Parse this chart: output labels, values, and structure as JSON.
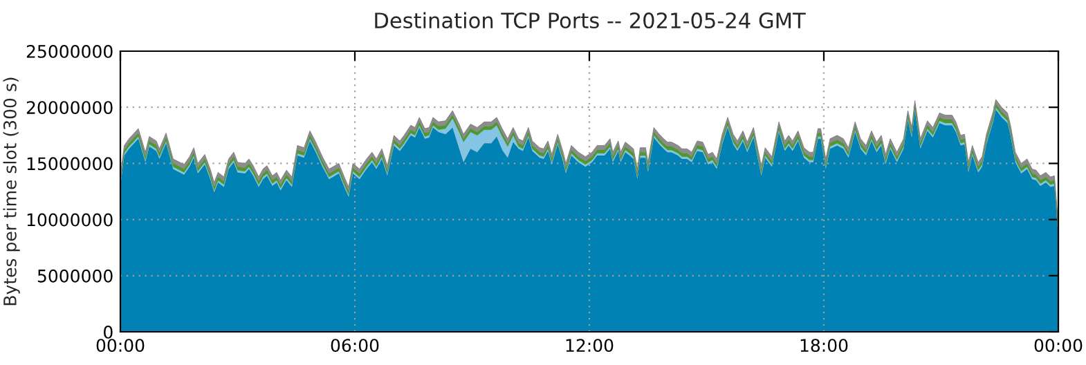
{
  "chart_data": {
    "type": "area",
    "stacked": true,
    "title": "Destination TCP Ports -- 2021-05-24 GMT",
    "ylabel": "Bytes per time slot (300 s)",
    "x": [
      0,
      0.1,
      0.22,
      0.46,
      0.64,
      0.74,
      0.92,
      1.0,
      1.17,
      1.35,
      1.52,
      1.63,
      1.77,
      1.88,
      1.98,
      2.16,
      2.3,
      2.4,
      2.5,
      2.65,
      2.77,
      2.9,
      3.0,
      3.19,
      3.29,
      3.4,
      3.54,
      3.65,
      3.75,
      3.89,
      4.0,
      4.1,
      4.25,
      4.39,
      4.53,
      4.7,
      4.85,
      5.0,
      5.17,
      5.34,
      5.49,
      5.59,
      5.73,
      5.84,
      5.95,
      6.12,
      6.3,
      6.44,
      6.55,
      6.69,
      6.83,
      7.0,
      7.15,
      7.26,
      7.43,
      7.54,
      7.65,
      7.79,
      7.9,
      8.0,
      8.14,
      8.32,
      8.5,
      8.67,
      8.78,
      8.96,
      9.13,
      9.31,
      9.49,
      9.63,
      9.77,
      9.91,
      10.05,
      10.19,
      10.3,
      10.44,
      10.54,
      10.73,
      10.83,
      10.94,
      11.04,
      11.19,
      11.33,
      11.4,
      11.54,
      11.72,
      11.9,
      12.07,
      12.2,
      12.39,
      12.53,
      12.6,
      12.74,
      12.8,
      12.92,
      13.03,
      13.13,
      13.23,
      13.3,
      13.44,
      13.5,
      13.65,
      13.79,
      13.9,
      14.0,
      14.1,
      14.27,
      14.37,
      14.5,
      14.62,
      14.76,
      14.9,
      15.04,
      15.15,
      15.26,
      15.4,
      15.54,
      15.68,
      15.79,
      15.93,
      16.04,
      16.2,
      16.4,
      16.5,
      16.67,
      16.85,
      17.0,
      17.1,
      17.2,
      17.34,
      17.49,
      17.63,
      17.73,
      17.85,
      17.92,
      18.05,
      18.16,
      18.34,
      18.5,
      18.63,
      18.8,
      18.94,
      19.08,
      19.22,
      19.35,
      19.47,
      19.58,
      19.7,
      19.87,
      20.04,
      20.15,
      20.25,
      20.33,
      20.47,
      20.65,
      20.79,
      20.96,
      21.1,
      21.28,
      21.38,
      21.5,
      21.6,
      21.7,
      21.8,
      21.95,
      22.05,
      22.16,
      22.34,
      22.4,
      22.55,
      22.7,
      22.77,
      22.9,
      23.05,
      23.2,
      23.33,
      23.43,
      23.54,
      23.68,
      23.8,
      23.9,
      24.0
    ],
    "series": [
      {
        "color": "#0083b4",
        "values": [
          13000000,
          15700000,
          16300000,
          17200000,
          15100000,
          16500000,
          16100000,
          15400000,
          16800000,
          14500000,
          14200000,
          14000000,
          14700000,
          15500000,
          14100000,
          14900000,
          13600000,
          12400000,
          13300000,
          12900000,
          14500000,
          15100000,
          14200000,
          14100000,
          14500000,
          13900000,
          12900000,
          13600000,
          13900000,
          13000000,
          13300000,
          12600000,
          13500000,
          12900000,
          15700000,
          15500000,
          17000000,
          16000000,
          14700000,
          13600000,
          13900000,
          14100000,
          12900000,
          12000000,
          14100000,
          13600000,
          14500000,
          15100000,
          14500000,
          15400000,
          13900000,
          16600000,
          16100000,
          16600000,
          17500000,
          17300000,
          18200000,
          17200000,
          17300000,
          18200000,
          17800000,
          17600000,
          18200000,
          16300000,
          15100000,
          16300000,
          16000000,
          16800000,
          16800000,
          17400000,
          16200000,
          15500000,
          16900000,
          16300000,
          16100000,
          17300000,
          16100000,
          15500000,
          15400000,
          16100000,
          14900000,
          16700000,
          15100000,
          14100000,
          15700000,
          15100000,
          14700000,
          15100000,
          15700000,
          15700000,
          16300000,
          15100000,
          16100000,
          15100000,
          16000000,
          15700000,
          15400000,
          13600000,
          15500000,
          15500000,
          14200000,
          17300000,
          16700000,
          16300000,
          16000000,
          16000000,
          15700000,
          15400000,
          15400000,
          15100000,
          16100000,
          16000000,
          14900000,
          15100000,
          14500000,
          16700000,
          18200000,
          16700000,
          16100000,
          17000000,
          16000000,
          17300000,
          13900000,
          15500000,
          14700000,
          17800000,
          16100000,
          16600000,
          16100000,
          17000000,
          15500000,
          15100000,
          15100000,
          17200000,
          17200000,
          14500000,
          16300000,
          16600000,
          16300000,
          15500000,
          17800000,
          16300000,
          15700000,
          17000000,
          16000000,
          16600000,
          14900000,
          16300000,
          15100000,
          16300000,
          18800000,
          17300000,
          19700000,
          16300000,
          17900000,
          17300000,
          18600000,
          18400000,
          18400000,
          17800000,
          16600000,
          16700000,
          14200000,
          15700000,
          14200000,
          14700000,
          16700000,
          18800000,
          19800000,
          19100000,
          18600000,
          17600000,
          15100000,
          14100000,
          14500000,
          13600000,
          13500000,
          13000000,
          13300000,
          12900000,
          13000000,
          8600000
        ]
      },
      {
        "color": "#86c4e4",
        "values": [
          200000,
          200000,
          200000,
          200000,
          200000,
          200000,
          200000,
          200000,
          200000,
          200000,
          200000,
          200000,
          200000,
          200000,
          200000,
          200000,
          200000,
          200000,
          200000,
          200000,
          200000,
          200000,
          200000,
          200000,
          200000,
          200000,
          200000,
          200000,
          200000,
          200000,
          200000,
          200000,
          200000,
          200000,
          200000,
          200000,
          200000,
          200000,
          200000,
          200000,
          200000,
          200000,
          200000,
          200000,
          200000,
          200000,
          200000,
          200000,
          200000,
          200000,
          200000,
          200000,
          200000,
          200000,
          200000,
          200000,
          200000,
          200000,
          200000,
          200000,
          200000,
          500000,
          800000,
          1500000,
          1800000,
          1500000,
          1500000,
          1200000,
          1200000,
          1000000,
          1200000,
          1000000,
          600000,
          200000,
          200000,
          200000,
          200000,
          200000,
          200000,
          200000,
          200000,
          200000,
          200000,
          200000,
          200000,
          200000,
          200000,
          200000,
          200000,
          200000,
          200000,
          200000,
          200000,
          200000,
          200000,
          200000,
          200000,
          200000,
          200000,
          200000,
          200000,
          200000,
          200000,
          200000,
          200000,
          200000,
          200000,
          200000,
          200000,
          200000,
          200000,
          200000,
          200000,
          200000,
          200000,
          200000,
          200000,
          200000,
          200000,
          200000,
          200000,
          200000,
          200000,
          200000,
          200000,
          200000,
          200000,
          200000,
          200000,
          200000,
          200000,
          200000,
          200000,
          200000,
          200000,
          200000,
          200000,
          200000,
          200000,
          200000,
          200000,
          200000,
          200000,
          200000,
          200000,
          200000,
          200000,
          200000,
          200000,
          200000,
          200000,
          200000,
          200000,
          200000,
          200000,
          200000,
          200000,
          200000,
          200000,
          200000,
          200000,
          200000,
          200000,
          200000,
          200000,
          200000,
          200000,
          200000,
          200000,
          200000,
          200000,
          200000,
          200000,
          200000,
          200000,
          200000,
          200000,
          200000,
          200000,
          200000,
          200000,
          200000
        ]
      },
      {
        "color": "#4c9a2a",
        "values": [
          300000,
          300000,
          300000,
          300000,
          300000,
          300000,
          300000,
          300000,
          300000,
          300000,
          300000,
          300000,
          300000,
          300000,
          300000,
          300000,
          300000,
          300000,
          300000,
          300000,
          300000,
          300000,
          300000,
          300000,
          300000,
          300000,
          300000,
          300000,
          300000,
          300000,
          300000,
          300000,
          300000,
          300000,
          300000,
          300000,
          300000,
          300000,
          300000,
          300000,
          300000,
          300000,
          300000,
          300000,
          300000,
          300000,
          300000,
          300000,
          300000,
          300000,
          300000,
          300000,
          300000,
          300000,
          300000,
          300000,
          300000,
          300000,
          300000,
          300000,
          300000,
          300000,
          300000,
          300000,
          300000,
          300000,
          300000,
          300000,
          300000,
          300000,
          300000,
          300000,
          300000,
          300000,
          300000,
          300000,
          300000,
          300000,
          300000,
          300000,
          300000,
          300000,
          300000,
          300000,
          300000,
          300000,
          300000,
          300000,
          300000,
          300000,
          300000,
          300000,
          300000,
          300000,
          300000,
          300000,
          300000,
          300000,
          300000,
          300000,
          300000,
          300000,
          300000,
          300000,
          300000,
          300000,
          300000,
          300000,
          300000,
          300000,
          300000,
          300000,
          300000,
          300000,
          300000,
          300000,
          300000,
          300000,
          300000,
          300000,
          300000,
          300000,
          300000,
          300000,
          300000,
          300000,
          300000,
          300000,
          300000,
          300000,
          300000,
          300000,
          300000,
          300000,
          300000,
          300000,
          300000,
          300000,
          300000,
          300000,
          300000,
          300000,
          300000,
          300000,
          300000,
          300000,
          300000,
          300000,
          300000,
          300000,
          300000,
          300000,
          300000,
          300000,
          300000,
          300000,
          300000,
          300000,
          300000,
          300000,
          300000,
          300000,
          300000,
          300000,
          300000,
          300000,
          300000,
          300000,
          300000,
          300000,
          300000,
          300000,
          300000,
          300000,
          300000,
          300000,
          300000,
          300000,
          300000,
          300000,
          300000,
          300000
        ]
      },
      {
        "color": "#8c8c8c",
        "values": [
          400000,
          400000,
          400000,
          400000,
          400000,
          400000,
          400000,
          400000,
          400000,
          400000,
          400000,
          400000,
          400000,
          400000,
          400000,
          400000,
          400000,
          400000,
          400000,
          400000,
          400000,
          400000,
          400000,
          400000,
          400000,
          400000,
          400000,
          400000,
          400000,
          400000,
          400000,
          400000,
          400000,
          400000,
          400000,
          400000,
          400000,
          400000,
          400000,
          400000,
          400000,
          400000,
          400000,
          400000,
          400000,
          400000,
          400000,
          400000,
          400000,
          400000,
          400000,
          400000,
          400000,
          400000,
          400000,
          400000,
          400000,
          400000,
          400000,
          400000,
          400000,
          400000,
          400000,
          400000,
          400000,
          400000,
          400000,
          400000,
          400000,
          400000,
          400000,
          400000,
          400000,
          400000,
          400000,
          400000,
          400000,
          400000,
          400000,
          400000,
          400000,
          400000,
          400000,
          400000,
          400000,
          400000,
          400000,
          400000,
          400000,
          400000,
          400000,
          400000,
          400000,
          400000,
          400000,
          400000,
          400000,
          400000,
          400000,
          400000,
          400000,
          400000,
          400000,
          400000,
          400000,
          400000,
          400000,
          400000,
          400000,
          400000,
          400000,
          400000,
          400000,
          400000,
          400000,
          400000,
          400000,
          400000,
          400000,
          400000,
          400000,
          400000,
          400000,
          400000,
          400000,
          400000,
          400000,
          400000,
          400000,
          400000,
          400000,
          400000,
          400000,
          400000,
          400000,
          400000,
          400000,
          400000,
          400000,
          400000,
          400000,
          400000,
          400000,
          400000,
          400000,
          400000,
          400000,
          400000,
          400000,
          400000,
          400000,
          400000,
          400000,
          400000,
          400000,
          400000,
          400000,
          400000,
          400000,
          400000,
          400000,
          400000,
          400000,
          400000,
          400000,
          400000,
          400000,
          400000,
          400000,
          400000,
          400000,
          400000,
          400000,
          400000,
          400000,
          400000,
          400000,
          400000,
          400000,
          400000,
          400000,
          400000
        ]
      }
    ],
    "xlim": [
      0,
      24
    ],
    "xticks": [
      {
        "value": 0,
        "label": "00:00"
      },
      {
        "value": 6,
        "label": "06:00"
      },
      {
        "value": 12,
        "label": "12:00"
      },
      {
        "value": 18,
        "label": "18:00"
      },
      {
        "value": 24,
        "label": "00:00"
      }
    ],
    "ylim": [
      0,
      25000000
    ],
    "yticks": [
      0,
      5000000,
      10000000,
      15000000,
      20000000,
      25000000
    ],
    "grid": true
  }
}
